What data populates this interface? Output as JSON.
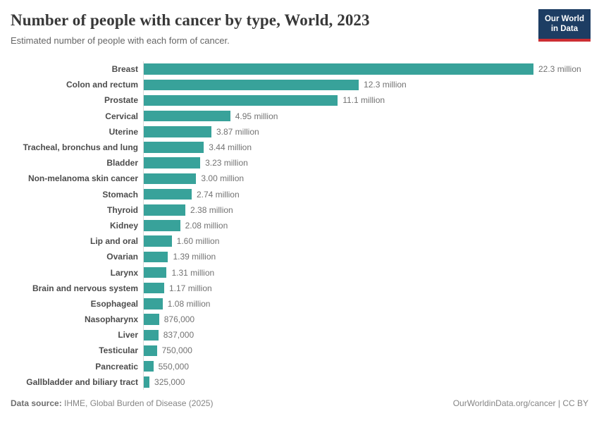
{
  "header": {
    "title": "Number of people with cancer by type, World, 2023",
    "subtitle": "Estimated number of people with each form of cancer."
  },
  "logo": {
    "line1": "Our World",
    "line2": "in Data"
  },
  "chart_data": {
    "type": "bar",
    "orientation": "horizontal",
    "title": "Number of people with cancer by type, World, 2023",
    "xlabel": "Number of people with cancer",
    "ylabel": "",
    "unit": "people (millions)",
    "xlim": [
      0,
      22.3
    ],
    "grid": false,
    "legend": "none",
    "categories": [
      "Breast",
      "Colon and rectum",
      "Prostate",
      "Cervical",
      "Uterine",
      "Tracheal, bronchus and lung",
      "Bladder",
      "Non-melanoma skin cancer",
      "Stomach",
      "Thyroid",
      "Kidney",
      "Lip and oral",
      "Ovarian",
      "Larynx",
      "Brain and nervous system",
      "Esophageal",
      "Nasopharynx",
      "Liver",
      "Testicular",
      "Pancreatic",
      "Gallbladder and biliary tract"
    ],
    "values": [
      22.3,
      12.3,
      11.1,
      4.95,
      3.87,
      3.44,
      3.23,
      3.0,
      2.74,
      2.38,
      2.08,
      1.6,
      1.39,
      1.31,
      1.17,
      1.08,
      0.876,
      0.837,
      0.75,
      0.55,
      0.325
    ],
    "value_labels": [
      "22.3 million",
      "12.3 million",
      "11.1 million",
      "4.95 million",
      "3.87 million",
      "3.44 million",
      "3.23 million",
      "3.00 million",
      "2.74 million",
      "2.38 million",
      "2.08 million",
      "1.60 million",
      "1.39 million",
      "1.31 million",
      "1.17 million",
      "1.08 million",
      "876,000",
      "837,000",
      "750,000",
      "550,000",
      "325,000"
    ]
  },
  "footer": {
    "source_label": "Data source:",
    "source_text": " IHME, Global Burden of Disease (2025)",
    "attribution": "OurWorldinData.org/cancer | CC BY"
  },
  "colors": {
    "bar": "#38a29a",
    "axis": "#dcdcdc",
    "label": "#4c4c4c",
    "value": "#737373",
    "logo_navy": "#1d3d63",
    "logo_red": "#cc2e33"
  }
}
